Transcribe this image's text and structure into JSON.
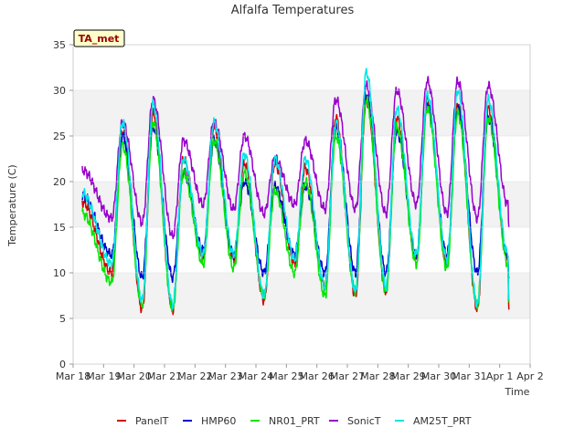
{
  "chart_data": {
    "type": "line",
    "title": "Alfalfa Temperatures",
    "xlabel": "Time",
    "ylabel": "Temperature (C)",
    "ylim": [
      0,
      35
    ],
    "yticks": [
      0,
      5,
      10,
      15,
      20,
      25,
      30,
      35
    ],
    "xlim": [
      "Mar 18",
      "Apr 2"
    ],
    "xticks": [
      "Mar 18",
      "Mar 19",
      "Mar 20",
      "Mar 21",
      "Mar 22",
      "Mar 23",
      "Mar 24",
      "Mar 25",
      "Mar 26",
      "Mar 27",
      "Mar 28",
      "Mar 29",
      "Mar 30",
      "Mar 31",
      "Apr 1",
      "Apr 2"
    ],
    "x_start_day": 0.3,
    "x_end_day": 14.3,
    "annotation": "TA_met",
    "grid": "horizontal bands",
    "legend_position": "bottom",
    "colors": {
      "PanelT": "#d40000",
      "HMP60": "#0000cc",
      "NR01_PRT": "#00e600",
      "SonicT": "#9900cc",
      "AM25T_PRT": "#00e6e6"
    },
    "series": [
      {
        "name": "PanelT",
        "daily_max": [
          25.5,
          27.5,
          22.5,
          26.0,
          22.0,
          22.0,
          21.5,
          27.0,
          29.0,
          27.0,
          29.0,
          28.5,
          28.0,
          22.0
        ],
        "daily_min": [
          10.0,
          6.0,
          6.0,
          11.5,
          11.5,
          7.0,
          11.0,
          8.5,
          7.5,
          8.0,
          11.5,
          11.0,
          6.0,
          11.5,
          6.5
        ]
      },
      {
        "name": "HMP60",
        "daily_max": [
          25.0,
          26.0,
          21.0,
          24.5,
          20.0,
          19.5,
          19.5,
          26.0,
          29.5,
          25.5,
          28.5,
          28.0,
          27.0,
          22.5
        ],
        "daily_min": [
          12.0,
          9.5,
          9.5,
          12.5,
          12.0,
          10.0,
          12.0,
          10.0,
          10.0,
          10.0,
          12.0,
          12.0,
          10.0,
          12.0,
          9.0
        ]
      },
      {
        "name": "NR01_PRT",
        "daily_max": [
          24.0,
          26.5,
          21.0,
          24.5,
          21.0,
          19.0,
          20.0,
          25.0,
          29.0,
          26.0,
          28.0,
          27.5,
          27.0,
          21.5
        ],
        "daily_min": [
          9.0,
          6.5,
          6.0,
          11.0,
          10.5,
          7.5,
          10.0,
          7.5,
          8.0,
          8.0,
          11.0,
          10.5,
          6.5,
          11.0,
          6.5
        ]
      },
      {
        "name": "SonicT",
        "daily_max": [
          26.5,
          29.0,
          24.5,
          26.5,
          25.0,
          22.5,
          24.5,
          29.0,
          30.5,
          30.0,
          31.0,
          31.0,
          30.5,
          25.5
        ],
        "daily_min": [
          16.0,
          15.5,
          14.0,
          17.5,
          17.0,
          16.5,
          17.5,
          17.0,
          17.0,
          16.5,
          17.5,
          16.5,
          16.0,
          17.5,
          15.5
        ]
      },
      {
        "name": "AM25T_PRT",
        "daily_max": [
          26.5,
          28.5,
          22.5,
          26.5,
          23.0,
          22.5,
          22.5,
          26.5,
          32.0,
          28.0,
          29.5,
          30.0,
          29.0,
          23.0
        ],
        "daily_min": [
          11.0,
          7.0,
          6.5,
          12.0,
          12.0,
          7.5,
          11.5,
          8.5,
          8.0,
          8.5,
          12.0,
          11.5,
          6.5,
          12.0,
          7.0
        ]
      }
    ]
  }
}
